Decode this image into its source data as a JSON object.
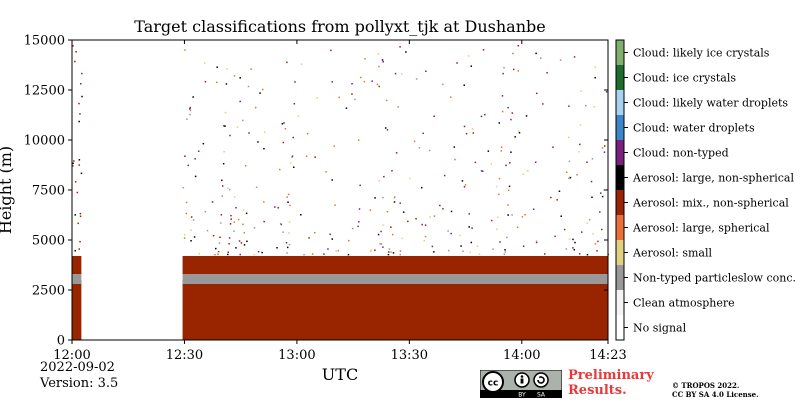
{
  "chart_data": {
    "type": "heatmap",
    "title": "Target classifications from pollyxt_tjk at Dushanbe",
    "xlabel": "UTC",
    "ylabel": "Height (m)",
    "ylim": [
      0,
      15000
    ],
    "x_ticks": [
      {
        "label": "12:00",
        "minutes": 0
      },
      {
        "label": "12:30",
        "minutes": 30
      },
      {
        "label": "13:00",
        "minutes": 60
      },
      {
        "label": "13:30",
        "minutes": 90
      },
      {
        "label": "14:00",
        "minutes": 120
      },
      {
        "label": "14:23",
        "minutes": 143
      }
    ],
    "xlim_minutes": [
      0,
      143
    ],
    "y_ticks": [
      0,
      2500,
      5000,
      7500,
      10000,
      12500,
      15000
    ],
    "y_tick_labels": [
      "0",
      "2500",
      "5000",
      "7500",
      "10000",
      "12500",
      "15000"
    ],
    "grid": false,
    "legend_placement": "right colorbar",
    "classes": [
      {
        "label": "No signal",
        "color": "#ffffff"
      },
      {
        "label": "Clean atmosphere",
        "color": "#f4f4f4"
      },
      {
        "label": "Non-typed particleslow conc.",
        "color": "#999999"
      },
      {
        "label": "Aerosol: small",
        "color": "#e2cf80"
      },
      {
        "label": "Aerosol: large, spherical",
        "color": "#e9703a"
      },
      {
        "label": "Aerosol: mix., non-spherical",
        "color": "#992400"
      },
      {
        "label": "Aerosol: large, non-spherical",
        "color": "#000000"
      },
      {
        "label": "Cloud: non-typed",
        "color": "#7b1f7d"
      },
      {
        "label": "Cloud: water droplets",
        "color": "#3a86c8"
      },
      {
        "label": "Cloud: likely water droplets",
        "color": "#a8d2ef"
      },
      {
        "label": "Cloud: ice crystals",
        "color": "#1e6b2e"
      },
      {
        "label": "Cloud: likely ice crystals",
        "color": "#7fb06e"
      }
    ],
    "data_gap_minutes": [
      2.5,
      29.5
    ],
    "observation_periods_minutes": [
      [
        0,
        2.5
      ],
      [
        29.5,
        143
      ]
    ],
    "layers": [
      {
        "class": "Aerosol: mix., non-spherical",
        "bottom_m": 0,
        "top_m": 3000
      },
      {
        "class": "Non-typed particleslow conc.",
        "bottom_m": 2800,
        "top_m": 3300
      },
      {
        "class": "Aerosol: mix., non-spherical",
        "bottom_m": 3300,
        "top_m": 4200
      }
    ]
  },
  "footer": {
    "date": "2022-09-02",
    "version": "Version: 3.5",
    "preliminary_line1": "Preliminary",
    "preliminary_line2": "Results.",
    "copyright_line1": "© TROPOS 2022.",
    "copyright_line2": "CC BY SA 4.0 License.",
    "license_badge_text": [
      "cc",
      "BY",
      "SA"
    ]
  }
}
